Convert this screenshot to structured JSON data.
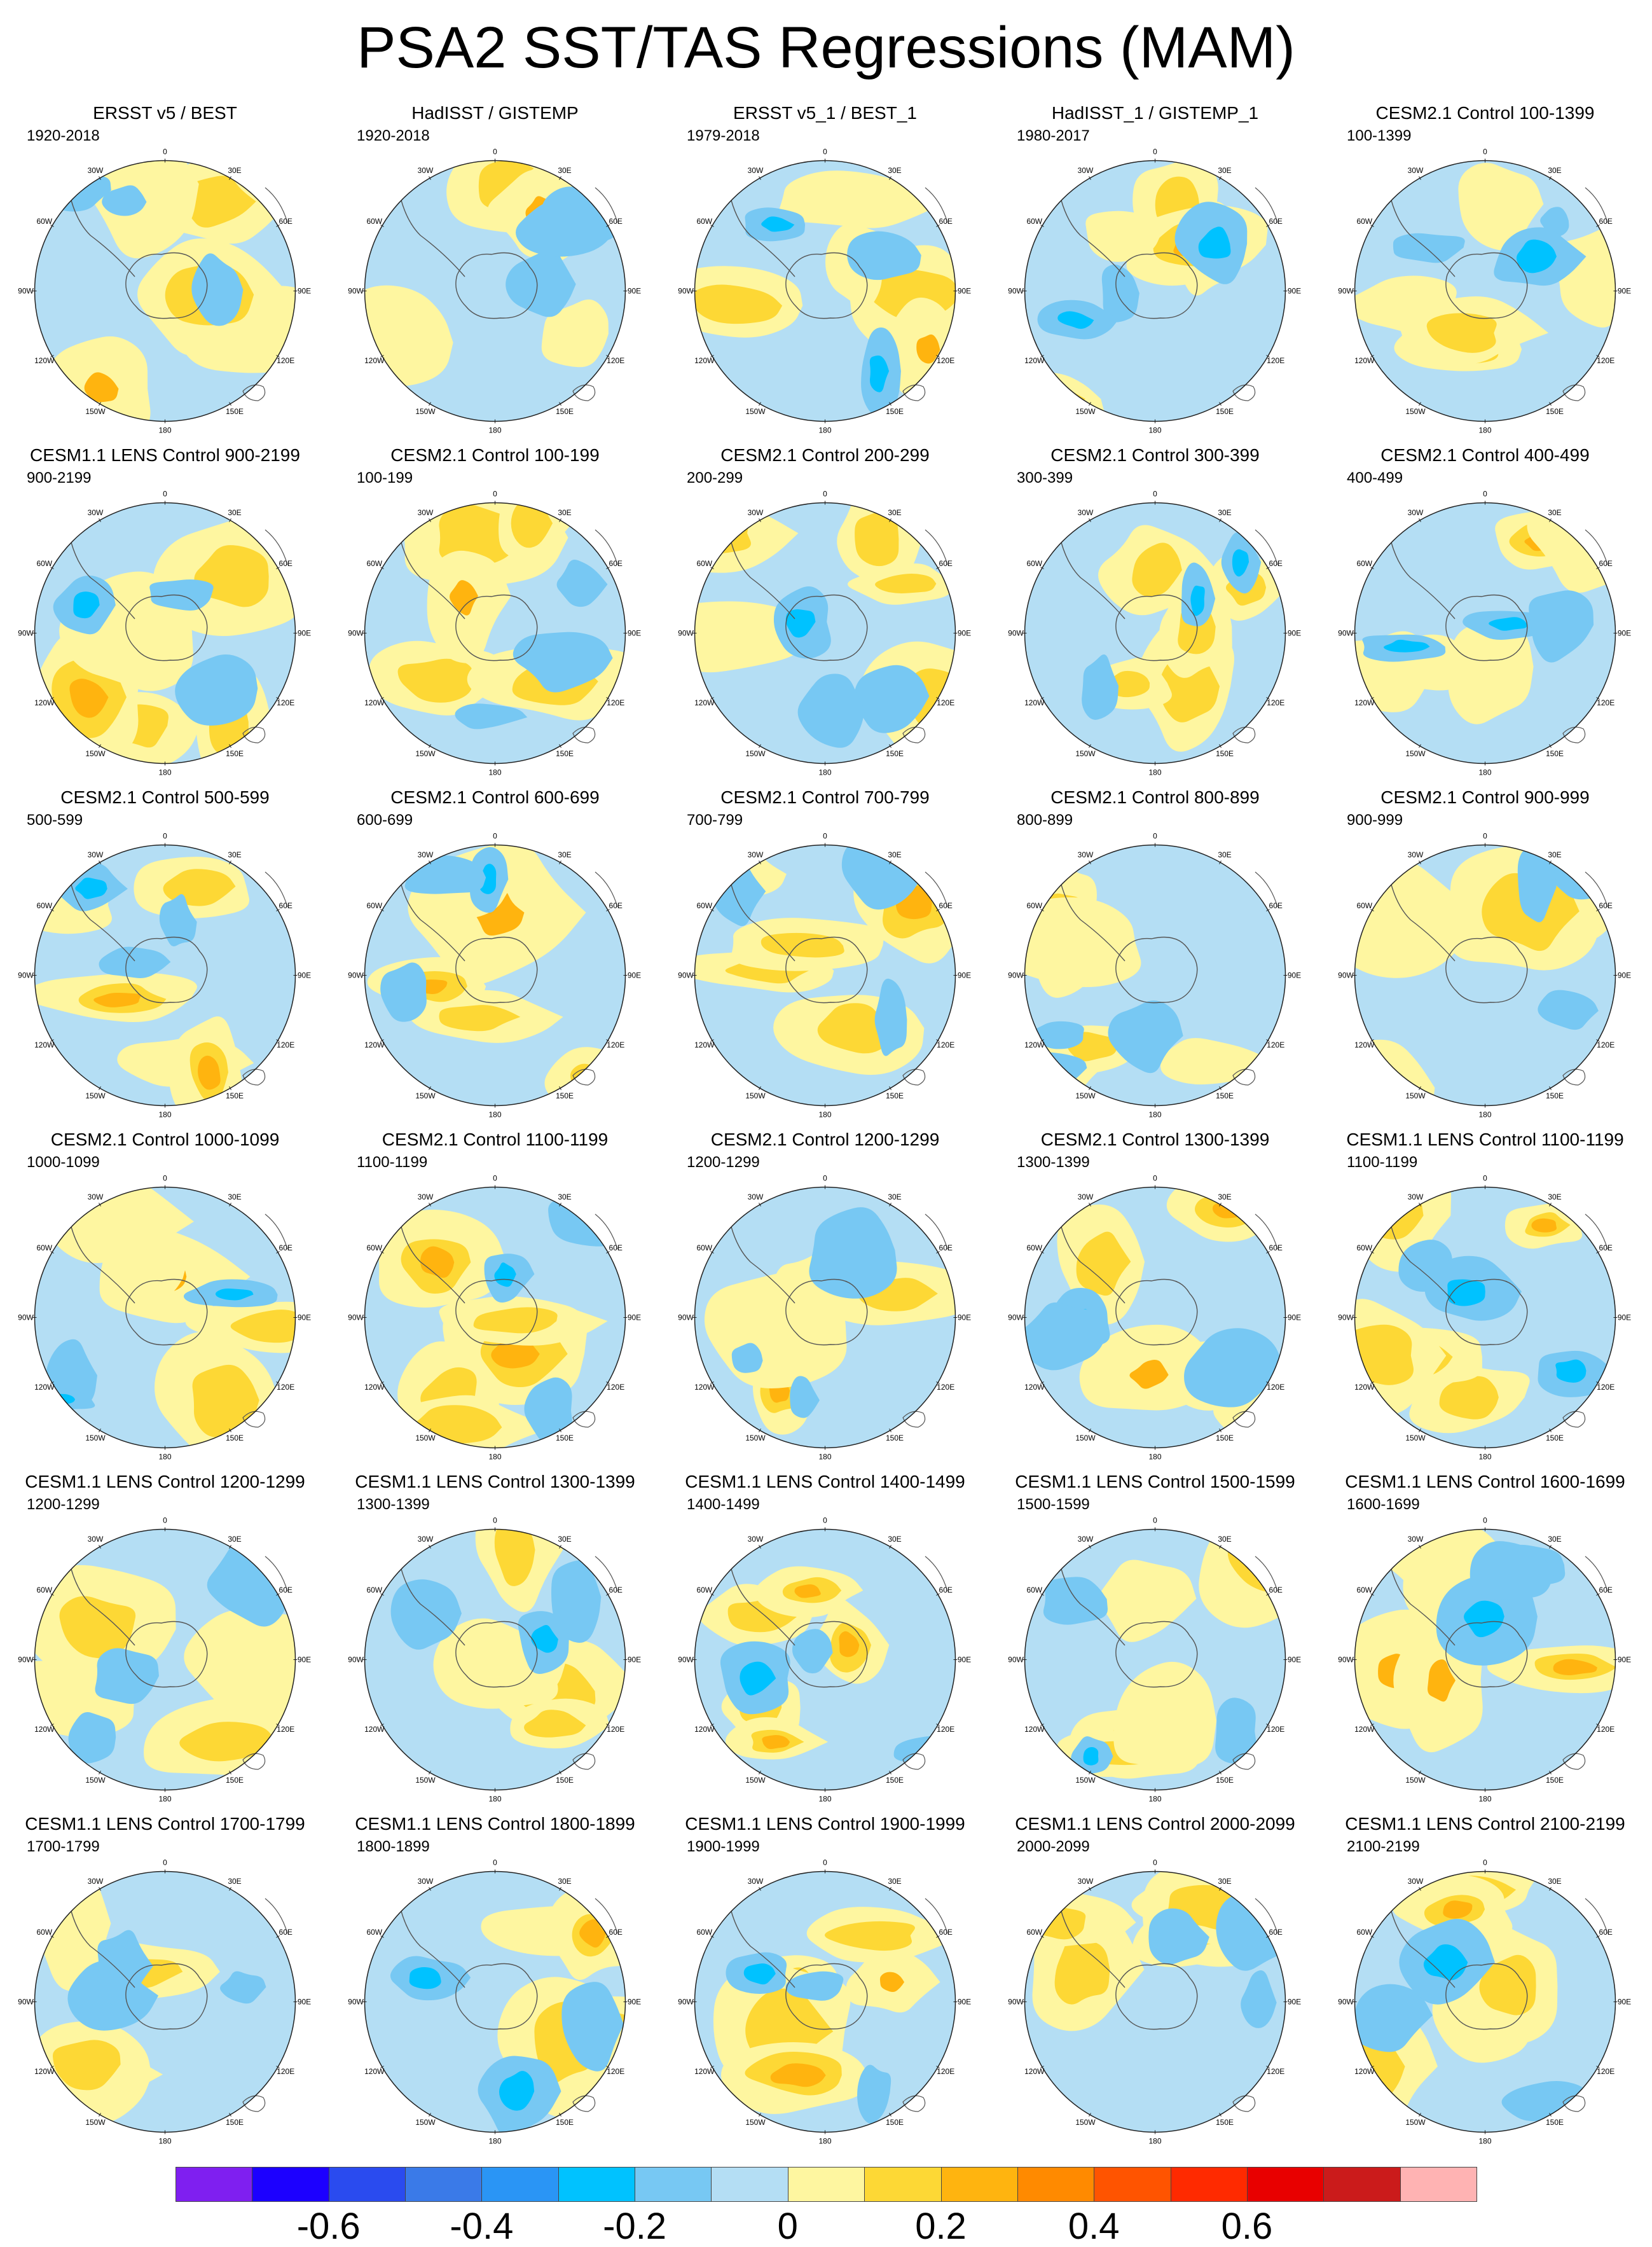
{
  "figure": {
    "title": "PSA2 SST/TAS Regressions (MAM)",
    "longitude_labels": [
      "0",
      "30E",
      "60E",
      "90E",
      "120E",
      "150E",
      "180",
      "150W",
      "120W",
      "90W",
      "60W",
      "30W"
    ]
  },
  "colorbar": {
    "colors": [
      "#7f1ff0",
      "#1c00ff",
      "#2a4bef",
      "#3a7ae8",
      "#2a95f5",
      "#00c2ff",
      "#77c8f3",
      "#b4def4",
      "#fef6a0",
      "#fdd835",
      "#ffb40f",
      "#ff8a00",
      "#ff5400",
      "#ff2a00",
      "#e80000",
      "#cb1b1b",
      "#ffb3b3"
    ],
    "tick_labels": [
      "-0.6",
      "-0.4",
      "-0.2",
      "0",
      "0.2",
      "0.4",
      "0.6"
    ]
  },
  "panels": [
    {
      "title": "ERSST v5 / BEST",
      "years": "1920-2018"
    },
    {
      "title": "HadISST / GISTEMP",
      "years": "1920-2018"
    },
    {
      "title": "ERSST v5_1 / BEST_1",
      "years": "1979-2018"
    },
    {
      "title": "HadISST_1 / GISTEMP_1",
      "years": "1980-2017"
    },
    {
      "title": "CESM2.1 Control 100-1399",
      "years": "100-1399"
    },
    {
      "title": "CESM1.1 LENS Control 900-2199",
      "years": "900-2199"
    },
    {
      "title": "CESM2.1 Control 100-199",
      "years": "100-199"
    },
    {
      "title": "CESM2.1 Control 200-299",
      "years": "200-299"
    },
    {
      "title": "CESM2.1 Control 300-399",
      "years": "300-399"
    },
    {
      "title": "CESM2.1 Control 400-499",
      "years": "400-499"
    },
    {
      "title": "CESM2.1 Control 500-599",
      "years": "500-599"
    },
    {
      "title": "CESM2.1 Control 600-699",
      "years": "600-699"
    },
    {
      "title": "CESM2.1 Control 700-799",
      "years": "700-799"
    },
    {
      "title": "CESM2.1 Control 800-899",
      "years": "800-899"
    },
    {
      "title": "CESM2.1 Control 900-999",
      "years": "900-999"
    },
    {
      "title": "CESM2.1 Control 1000-1099",
      "years": "1000-1099"
    },
    {
      "title": "CESM2.1 Control 1100-1199",
      "years": "1100-1199"
    },
    {
      "title": "CESM2.1 Control 1200-1299",
      "years": "1200-1299"
    },
    {
      "title": "CESM2.1 Control 1300-1399",
      "years": "1300-1399"
    },
    {
      "title": "CESM1.1 LENS Control 1100-1199",
      "years": "1100-1199"
    },
    {
      "title": "CESM1.1 LENS Control 1200-1299",
      "years": "1200-1299"
    },
    {
      "title": "CESM1.1 LENS Control 1300-1399",
      "years": "1300-1399"
    },
    {
      "title": "CESM1.1 LENS Control 1400-1499",
      "years": "1400-1499"
    },
    {
      "title": "CESM1.1 LENS Control 1500-1599",
      "years": "1500-1599"
    },
    {
      "title": "CESM1.1 LENS Control 1600-1699",
      "years": "1600-1699"
    },
    {
      "title": "CESM1.1 LENS Control 1700-1799",
      "years": "1700-1799"
    },
    {
      "title": "CESM1.1 LENS Control 1800-1899",
      "years": "1800-1899"
    },
    {
      "title": "CESM1.1 LENS Control 1900-1999",
      "years": "1900-1999"
    },
    {
      "title": "CESM1.1 LENS Control 2000-2099",
      "years": "2000-2099"
    },
    {
      "title": "CESM1.1 LENS Control 2100-2199",
      "years": "2100-2199"
    }
  ]
}
